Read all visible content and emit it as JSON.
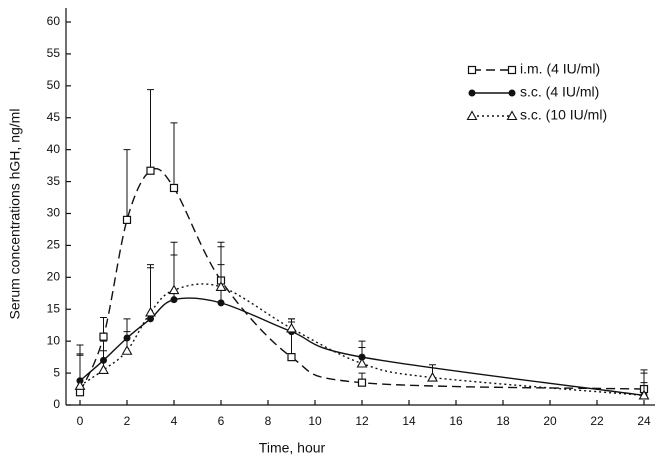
{
  "chart_data": {
    "type": "line",
    "xlabel": "Time, hour",
    "ylabel": "Serum concentrations hGH, ng/ml",
    "xlim": [
      0,
      24
    ],
    "xticks": [
      0,
      2,
      4,
      6,
      8,
      10,
      12,
      14,
      16,
      18,
      20,
      22,
      24
    ],
    "ylim": [
      0,
      60
    ],
    "yticks": [
      0,
      5,
      10,
      15,
      20,
      25,
      30,
      35,
      40,
      45,
      50,
      55,
      60
    ],
    "legend": "upper right",
    "series": [
      {
        "name": "i.m. (4 IU/ml)",
        "color": "#111111",
        "dash": "dashed",
        "marker": "square",
        "x": [
          0,
          1,
          2,
          3,
          4,
          6,
          9,
          12,
          24
        ],
        "values": [
          2,
          10.7,
          29,
          36.7,
          34,
          19.5,
          7.5,
          3.5,
          2.5
        ],
        "errors": [
          7.4,
          3,
          11,
          12.7,
          10.2,
          5.3,
          5.5,
          1.5,
          3
        ]
      },
      {
        "name": "s.c. (4 IU/ml)",
        "color": "#111111",
        "dash": "solid",
        "marker": "circle",
        "x": [
          0,
          1,
          2,
          3,
          4,
          6,
          9,
          12,
          24
        ],
        "values": [
          3.8,
          7,
          10.5,
          13.5,
          16.5,
          16,
          11.5,
          7.5,
          1.5
        ],
        "errors": [
          4,
          3,
          3,
          8,
          9,
          6,
          2,
          2.5,
          2
        ]
      },
      {
        "name": "s.c. (10 IU/ml)",
        "color": "#111111",
        "dash": "dotted",
        "marker": "triangle",
        "x": [
          0,
          1,
          2,
          3,
          4,
          6,
          9,
          12,
          15,
          24
        ],
        "values": [
          3,
          5.5,
          8.5,
          14.5,
          18,
          18.5,
          12,
          6.5,
          4.3,
          1.5
        ],
        "errors": [
          5,
          3,
          3,
          7.5,
          5.5,
          7,
          1.5,
          2.5,
          2,
          3.5
        ]
      }
    ]
  }
}
